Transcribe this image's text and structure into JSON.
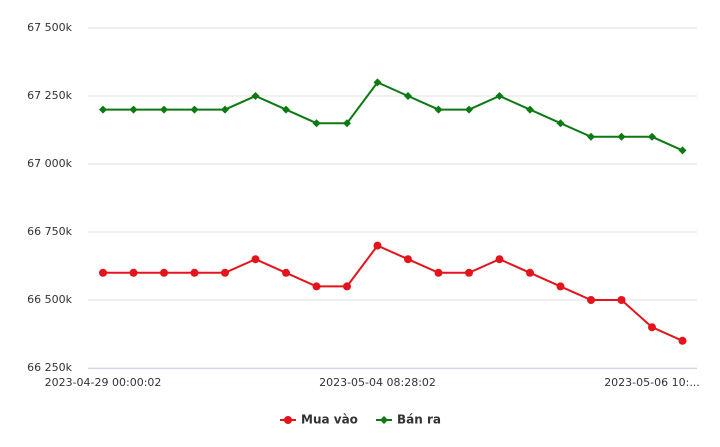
{
  "chart_data": {
    "type": "line",
    "categories": [
      "2023-04-29 00:00:02",
      null,
      null,
      null,
      null,
      null,
      null,
      null,
      null,
      "2023-05-04 08:28:02",
      null,
      null,
      null,
      null,
      null,
      null,
      null,
      null,
      "2023-05-06 10:...",
      null
    ],
    "series": [
      {
        "name": "Mua vào",
        "color": "#e3141b",
        "marker": "circle",
        "values": [
          66600,
          66600,
          66600,
          66600,
          66600,
          66650,
          66600,
          66550,
          66550,
          66700,
          66650,
          66600,
          66600,
          66650,
          66600,
          66550,
          66500,
          66500,
          66400,
          66350
        ]
      },
      {
        "name": "Bán ra",
        "color": "#0b7a12",
        "marker": "diamond",
        "values": [
          67200,
          67200,
          67200,
          67200,
          67200,
          67250,
          67200,
          67150,
          67150,
          67300,
          67250,
          67200,
          67200,
          67250,
          67200,
          67150,
          67100,
          67100,
          67100,
          67050
        ]
      }
    ],
    "ylim": [
      66250,
      67500
    ],
    "yticks": [
      {
        "value": 66250,
        "label": "66 250k"
      },
      {
        "value": 66500,
        "label": "66 500k"
      },
      {
        "value": 66750,
        "label": "66 750k"
      },
      {
        "value": 67000,
        "label": "67 000k"
      },
      {
        "value": 67250,
        "label": "67 250k"
      },
      {
        "value": 67500,
        "label": "67 500k"
      }
    ],
    "grid": true,
    "legend": "bottom"
  }
}
